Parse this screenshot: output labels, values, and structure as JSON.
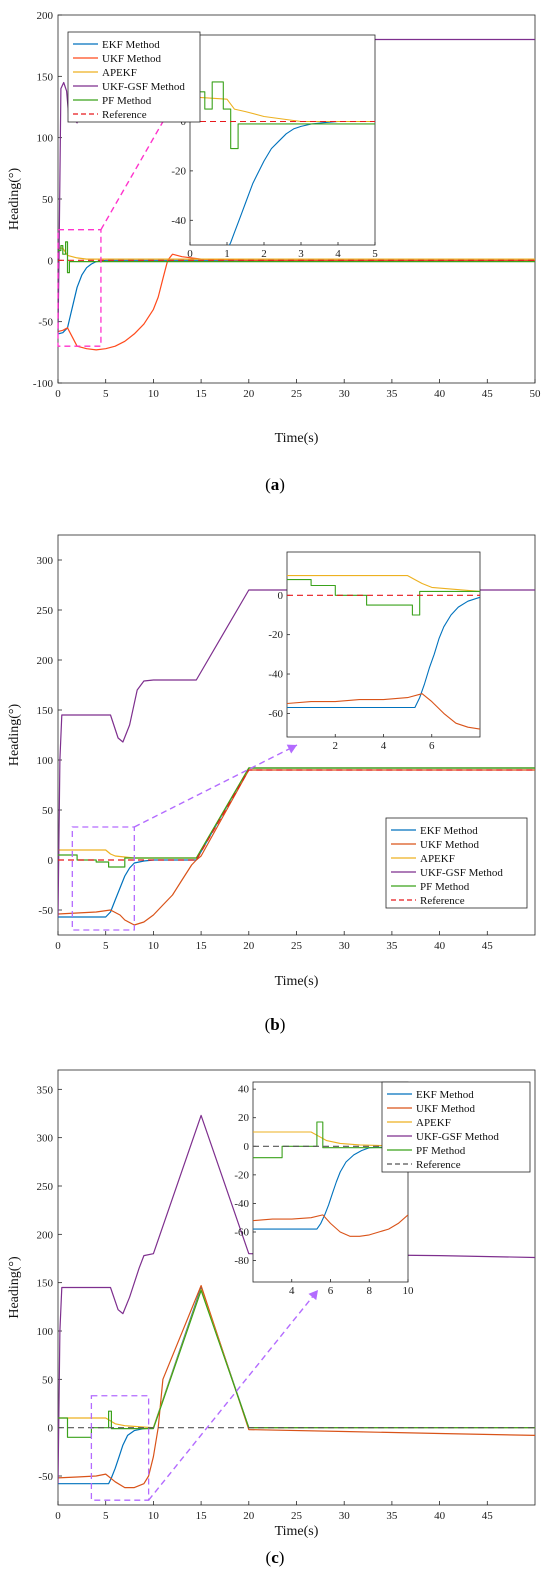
{
  "colors": {
    "ekf": "#0072BD",
    "ukf_a": "#FF4A1C",
    "ukf_bc": "#D95319",
    "apekf": "#EDB120",
    "gsf": "#7E2F8E",
    "pf": "#3AA21B",
    "ref": "#E8191C",
    "ref_c": "#555555",
    "box_a": "#FF33CC",
    "box_bc": "#B36BFF"
  },
  "chart_data": [
    {
      "type": "line",
      "panel": "(a)",
      "panel_prefix": "(",
      "panel_letter": "a",
      "panel_suffix": ")",
      "xlabel": "Time(s)",
      "ylabel": "Heading(°)",
      "xlim": [
        0,
        50
      ],
      "ylim": [
        -100,
        200
      ],
      "xticks": [
        0,
        5,
        10,
        15,
        20,
        25,
        30,
        35,
        40,
        45,
        50
      ],
      "yticks": [
        -100,
        -50,
        0,
        50,
        100,
        150,
        200
      ],
      "legend_position": "top-left",
      "series": [
        {
          "name": "EKF Method",
          "key": "ekf",
          "x": [
            0,
            0.5,
            1,
            1.3,
            1.6,
            2,
            2.5,
            3,
            3.5,
            4,
            5,
            50
          ],
          "y": [
            -60,
            -59,
            -55,
            -45,
            -35,
            -22,
            -12,
            -6,
            -3,
            -1,
            0,
            0
          ]
        },
        {
          "name": "UKF Method",
          "key": "ukf_a",
          "x": [
            0,
            0.5,
            1,
            2,
            3,
            4,
            5,
            6,
            7,
            8,
            9,
            10,
            10.5,
            11,
            11.5,
            12,
            13,
            15,
            20,
            30,
            40,
            50
          ],
          "y": [
            -58,
            -57,
            -55,
            -70,
            -72,
            -73,
            -72,
            -70,
            -66,
            -60,
            -52,
            -40,
            -30,
            -15,
            0,
            5,
            3,
            1,
            0,
            0,
            0,
            0
          ]
        },
        {
          "name": "APEKF",
          "key": "apekf",
          "x": [
            0,
            0.5,
            1,
            1.5,
            2,
            3,
            5,
            50
          ],
          "y": [
            10,
            10,
            4,
            3,
            2,
            1,
            1,
            1
          ]
        },
        {
          "name": "UKF-GSF Method",
          "key": "gsf",
          "x": [
            0,
            0.1,
            0.3,
            0.6,
            0.9,
            1.1,
            1.3,
            1.6,
            2.0,
            2.5,
            2.7,
            3,
            10,
            20,
            30,
            40,
            50
          ],
          "y": [
            -60,
            0,
            140,
            145,
            138,
            120,
            114,
            116,
            112,
            150,
            178,
            180,
            180,
            180,
            180,
            180,
            180
          ]
        },
        {
          "name": "PF Method",
          "key": "pf",
          "x": [
            0,
            0.3,
            0.3,
            0.5,
            0.5,
            0.8,
            0.8,
            1.0,
            1.0,
            1.2,
            1.2,
            50
          ],
          "y": [
            8,
            8,
            12,
            12,
            5,
            5,
            15,
            15,
            -10,
            -10,
            -1,
            -1
          ]
        },
        {
          "name": "Reference",
          "key": "ref",
          "dashed": true,
          "x": [
            0,
            50
          ],
          "y": [
            0,
            0
          ]
        }
      ],
      "zoom_box": {
        "x": [
          0,
          4.5
        ],
        "y": [
          -70,
          25
        ]
      },
      "inset": {
        "xlim": [
          0,
          5
        ],
        "ylim": [
          -50,
          35
        ],
        "xticks": [
          0,
          1,
          2,
          3,
          4,
          5
        ],
        "yticks": [
          -40,
          -20,
          0,
          20
        ],
        "series": [
          {
            "key": "ekf",
            "x": [
              1.0,
              1.1,
              1.2,
              1.3,
              1.4,
              1.5,
              1.6,
              1.7,
              1.8,
              1.9,
              2.0,
              2.2,
              2.4,
              2.6,
              2.8,
              3.0,
              3.3,
              3.6,
              4,
              5
            ],
            "y": [
              -52,
              -49,
              -45,
              -41,
              -37,
              -33,
              -29,
              -25,
              -22,
              -19,
              -16,
              -11,
              -8,
              -5,
              -3,
              -2,
              -1,
              -0.5,
              0,
              0
            ]
          },
          {
            "key": "apekf",
            "x": [
              0,
              1,
              1.2,
              1.5,
              2,
              2.5,
              3,
              5
            ],
            "y": [
              10,
              9,
              5,
              4,
              2,
              1,
              0,
              0
            ]
          },
          {
            "key": "pf",
            "x": [
              0,
              0.2,
              0.2,
              0.4,
              0.4,
              0.6,
              0.6,
              0.9,
              0.9,
              1.1,
              1.1,
              1.3,
              1.3,
              5
            ],
            "y": [
              8,
              8,
              12,
              12,
              5,
              5,
              16,
              16,
              5,
              5,
              -11,
              -11,
              -1,
              -1
            ]
          },
          {
            "key": "ref",
            "dashed": true,
            "x": [
              0,
              5
            ],
            "y": [
              0,
              0
            ]
          }
        ]
      }
    },
    {
      "type": "line",
      "panel": "(b)",
      "panel_prefix": "(",
      "panel_letter": "b",
      "panel_suffix": ")",
      "xlabel": "Time(s)",
      "ylabel": "Heading(°)",
      "xlim": [
        0,
        50
      ],
      "ylim": [
        -75,
        325
      ],
      "xticks": [
        0,
        5,
        10,
        15,
        20,
        25,
        30,
        35,
        40,
        45
      ],
      "yticks": [
        -50,
        0,
        50,
        100,
        150,
        200,
        250,
        300
      ],
      "legend_position": "bottom-right",
      "series": [
        {
          "name": "EKF Method",
          "key": "ekf",
          "x": [
            0,
            5,
            5.5,
            6,
            6.5,
            7,
            7.5,
            8,
            9,
            10,
            14.5,
            20,
            50
          ],
          "y": [
            -57,
            -57,
            -52,
            -40,
            -28,
            -16,
            -8,
            -3,
            -1,
            0,
            0,
            92,
            92
          ]
        },
        {
          "name": "UKF Method",
          "key": "ukf_bc",
          "x": [
            0,
            2,
            4,
            5.5,
            6.5,
            7,
            8,
            9,
            10,
            11,
            12,
            13,
            14,
            14.5,
            15,
            20,
            30,
            40,
            50
          ],
          "y": [
            -54,
            -53,
            -52,
            -50,
            -55,
            -60,
            -65,
            -62,
            -55,
            -45,
            -35,
            -20,
            -5,
            0,
            4,
            90,
            90,
            90,
            90
          ]
        },
        {
          "name": "APEKF",
          "key": "apekf",
          "x": [
            0,
            5,
            5.5,
            6,
            7,
            8,
            14.5,
            20,
            50
          ],
          "y": [
            10,
            10,
            6,
            4,
            3,
            2,
            2,
            92,
            92
          ]
        },
        {
          "name": "UKF-GSF Method",
          "key": "gsf",
          "x": [
            0,
            0.2,
            0.4,
            5.5,
            6.3,
            6.8,
            7.5,
            8.3,
            9,
            10,
            14.5,
            20,
            30,
            40,
            50
          ],
          "y": [
            -57,
            100,
            145,
            145,
            122,
            118,
            135,
            170,
            179,
            180,
            180,
            270,
            270,
            270,
            270
          ]
        },
        {
          "name": "PF Method",
          "key": "pf",
          "x": [
            0,
            2,
            2,
            4,
            4,
            5.3,
            5.3,
            7,
            7,
            14.5,
            20,
            50
          ],
          "y": [
            5,
            5,
            0,
            0,
            -2,
            -2,
            -7,
            -7,
            2,
            2,
            92,
            92
          ]
        },
        {
          "name": "Reference",
          "key": "ref",
          "dashed": true,
          "x": [
            0,
            14.5,
            20,
            50
          ],
          "y": [
            0,
            0,
            90,
            90
          ]
        }
      ],
      "zoom_box": {
        "x": [
          1.5,
          8
        ],
        "y": [
          -70,
          33
        ]
      },
      "inset": {
        "xlim": [
          0,
          8
        ],
        "ylim": [
          -72,
          22
        ],
        "xticks": [
          2,
          4,
          6
        ],
        "yticks": [
          -60,
          -40,
          -20,
          0
        ],
        "series": [
          {
            "key": "ekf",
            "x": [
              0,
              5.3,
              5.5,
              5.7,
              5.9,
              6.1,
              6.3,
              6.5,
              6.8,
              7.1,
              7.5,
              8
            ],
            "y": [
              -57,
              -57,
              -52,
              -45,
              -37,
              -30,
              -22,
              -16,
              -10,
              -6,
              -3,
              -1
            ]
          },
          {
            "key": "ukf_bc",
            "x": [
              0,
              1,
              2,
              3,
              4,
              5,
              5.6,
              6,
              6.5,
              7,
              7.5,
              8
            ],
            "y": [
              -55,
              -54,
              -54,
              -53,
              -53,
              -52,
              -50,
              -54,
              -60,
              -65,
              -67,
              -68
            ]
          },
          {
            "key": "apekf",
            "x": [
              0,
              5,
              5.3,
              5.6,
              6,
              7,
              8
            ],
            "y": [
              10,
              10,
              8,
              6,
              4,
              3,
              2
            ]
          },
          {
            "key": "pf",
            "x": [
              0,
              1,
              1,
              2,
              2,
              3.3,
              3.3,
              5.2,
              5.2,
              5.5,
              5.5,
              8
            ],
            "y": [
              8,
              8,
              5,
              5,
              0,
              0,
              -5,
              -5,
              -10,
              -10,
              2,
              2
            ]
          },
          {
            "key": "ref",
            "dashed": true,
            "x": [
              0,
              8
            ],
            "y": [
              0,
              0
            ]
          }
        ]
      }
    },
    {
      "type": "line",
      "panel": "(c)",
      "panel_prefix": "(",
      "panel_letter": "c",
      "panel_suffix": ")",
      "xlabel": "Time(s)",
      "ylabel": "Heading(°)",
      "xlim": [
        0,
        50
      ],
      "ylim": [
        -80,
        370
      ],
      "xticks": [
        0,
        5,
        10,
        15,
        20,
        25,
        30,
        35,
        40,
        45
      ],
      "yticks": [
        -50,
        0,
        50,
        100,
        150,
        200,
        250,
        300,
        350
      ],
      "legend_position": "top-right",
      "series": [
        {
          "name": "EKF Method",
          "key": "ekf",
          "x": [
            0,
            5.3,
            5.6,
            6,
            6.4,
            6.8,
            7.3,
            8,
            9,
            10,
            15,
            20,
            50
          ],
          "y": [
            -58,
            -58,
            -52,
            -42,
            -30,
            -18,
            -8,
            -3,
            -1,
            0,
            145,
            0,
            0
          ]
        },
        {
          "name": "UKF Method",
          "key": "ukf_bc",
          "x": [
            0,
            2,
            4,
            5,
            6,
            7,
            8,
            9,
            9.5,
            10,
            10.5,
            11,
            15,
            20,
            30,
            40,
            50
          ],
          "y": [
            -52,
            -51,
            -50,
            -48,
            -56,
            -62,
            -62,
            -58,
            -50,
            -30,
            0,
            50,
            147,
            -2,
            -4,
            -6,
            -8
          ]
        },
        {
          "name": "APEKF",
          "key": "apekf",
          "x": [
            0,
            5,
            5.5,
            6,
            7,
            10,
            15,
            20,
            50
          ],
          "y": [
            10,
            10,
            7,
            4,
            2,
            0,
            143,
            0,
            0
          ]
        },
        {
          "name": "UKF-GSF Method",
          "key": "gsf",
          "x": [
            0,
            0.2,
            0.4,
            5.5,
            6.3,
            6.8,
            7.5,
            8.5,
            9,
            10,
            15,
            20,
            30,
            40,
            50
          ],
          "y": [
            -58,
            100,
            145,
            145,
            122,
            118,
            135,
            165,
            178,
            180,
            323,
            180,
            179,
            178,
            176
          ]
        },
        {
          "name": "PF Method",
          "key": "pf",
          "x": [
            0,
            1,
            1,
            3.5,
            3.5,
            5.3,
            5.3,
            5.6,
            5.6,
            10,
            15,
            20,
            50
          ],
          "y": [
            10,
            10,
            -10,
            -10,
            0,
            0,
            17,
            17,
            -1,
            -1,
            142,
            0,
            0
          ]
        },
        {
          "name": "Reference",
          "key": "ref_c",
          "dashed": true,
          "x": [
            0,
            50
          ],
          "y": [
            0,
            0
          ]
        }
      ],
      "zoom_box": {
        "x": [
          3.5,
          9.5
        ],
        "y": [
          -75,
          33
        ]
      },
      "inset": {
        "xlim": [
          2,
          10
        ],
        "ylim": [
          -95,
          45
        ],
        "xticks": [
          4,
          6,
          8,
          10
        ],
        "yticks": [
          -80,
          -60,
          -40,
          -20,
          0,
          20,
          40
        ],
        "series": [
          {
            "key": "ekf",
            "x": [
              2,
              5.3,
              5.5,
              5.7,
              5.9,
              6.1,
              6.3,
              6.5,
              6.8,
              7.2,
              7.6,
              8,
              10
            ],
            "y": [
              -58,
              -58,
              -54,
              -48,
              -41,
              -33,
              -25,
              -18,
              -11,
              -6,
              -3,
              -1,
              0
            ]
          },
          {
            "key": "ukf_bc",
            "x": [
              2,
              3,
              4,
              5,
              5.6,
              6,
              6.5,
              7,
              7.5,
              8,
              8.5,
              9,
              9.5,
              10
            ],
            "y": [
              -52,
              -51,
              -51,
              -50,
              -48,
              -54,
              -60,
              -63,
              -63,
              -62,
              -60,
              -58,
              -54,
              -48
            ]
          },
          {
            "key": "apekf",
            "x": [
              2,
              5,
              5.4,
              5.8,
              6.5,
              7.5,
              10
            ],
            "y": [
              10,
              10,
              7,
              4,
              2,
              1,
              0
            ]
          },
          {
            "key": "pf",
            "x": [
              2,
              3.5,
              3.5,
              5.3,
              5.3,
              5.6,
              5.6,
              10
            ],
            "y": [
              -8,
              -8,
              0,
              0,
              17,
              17,
              -1,
              -1
            ]
          },
          {
            "key": "ref_c",
            "dashed": true,
            "x": [
              2,
              10
            ],
            "y": [
              0,
              0
            ]
          }
        ]
      }
    }
  ]
}
